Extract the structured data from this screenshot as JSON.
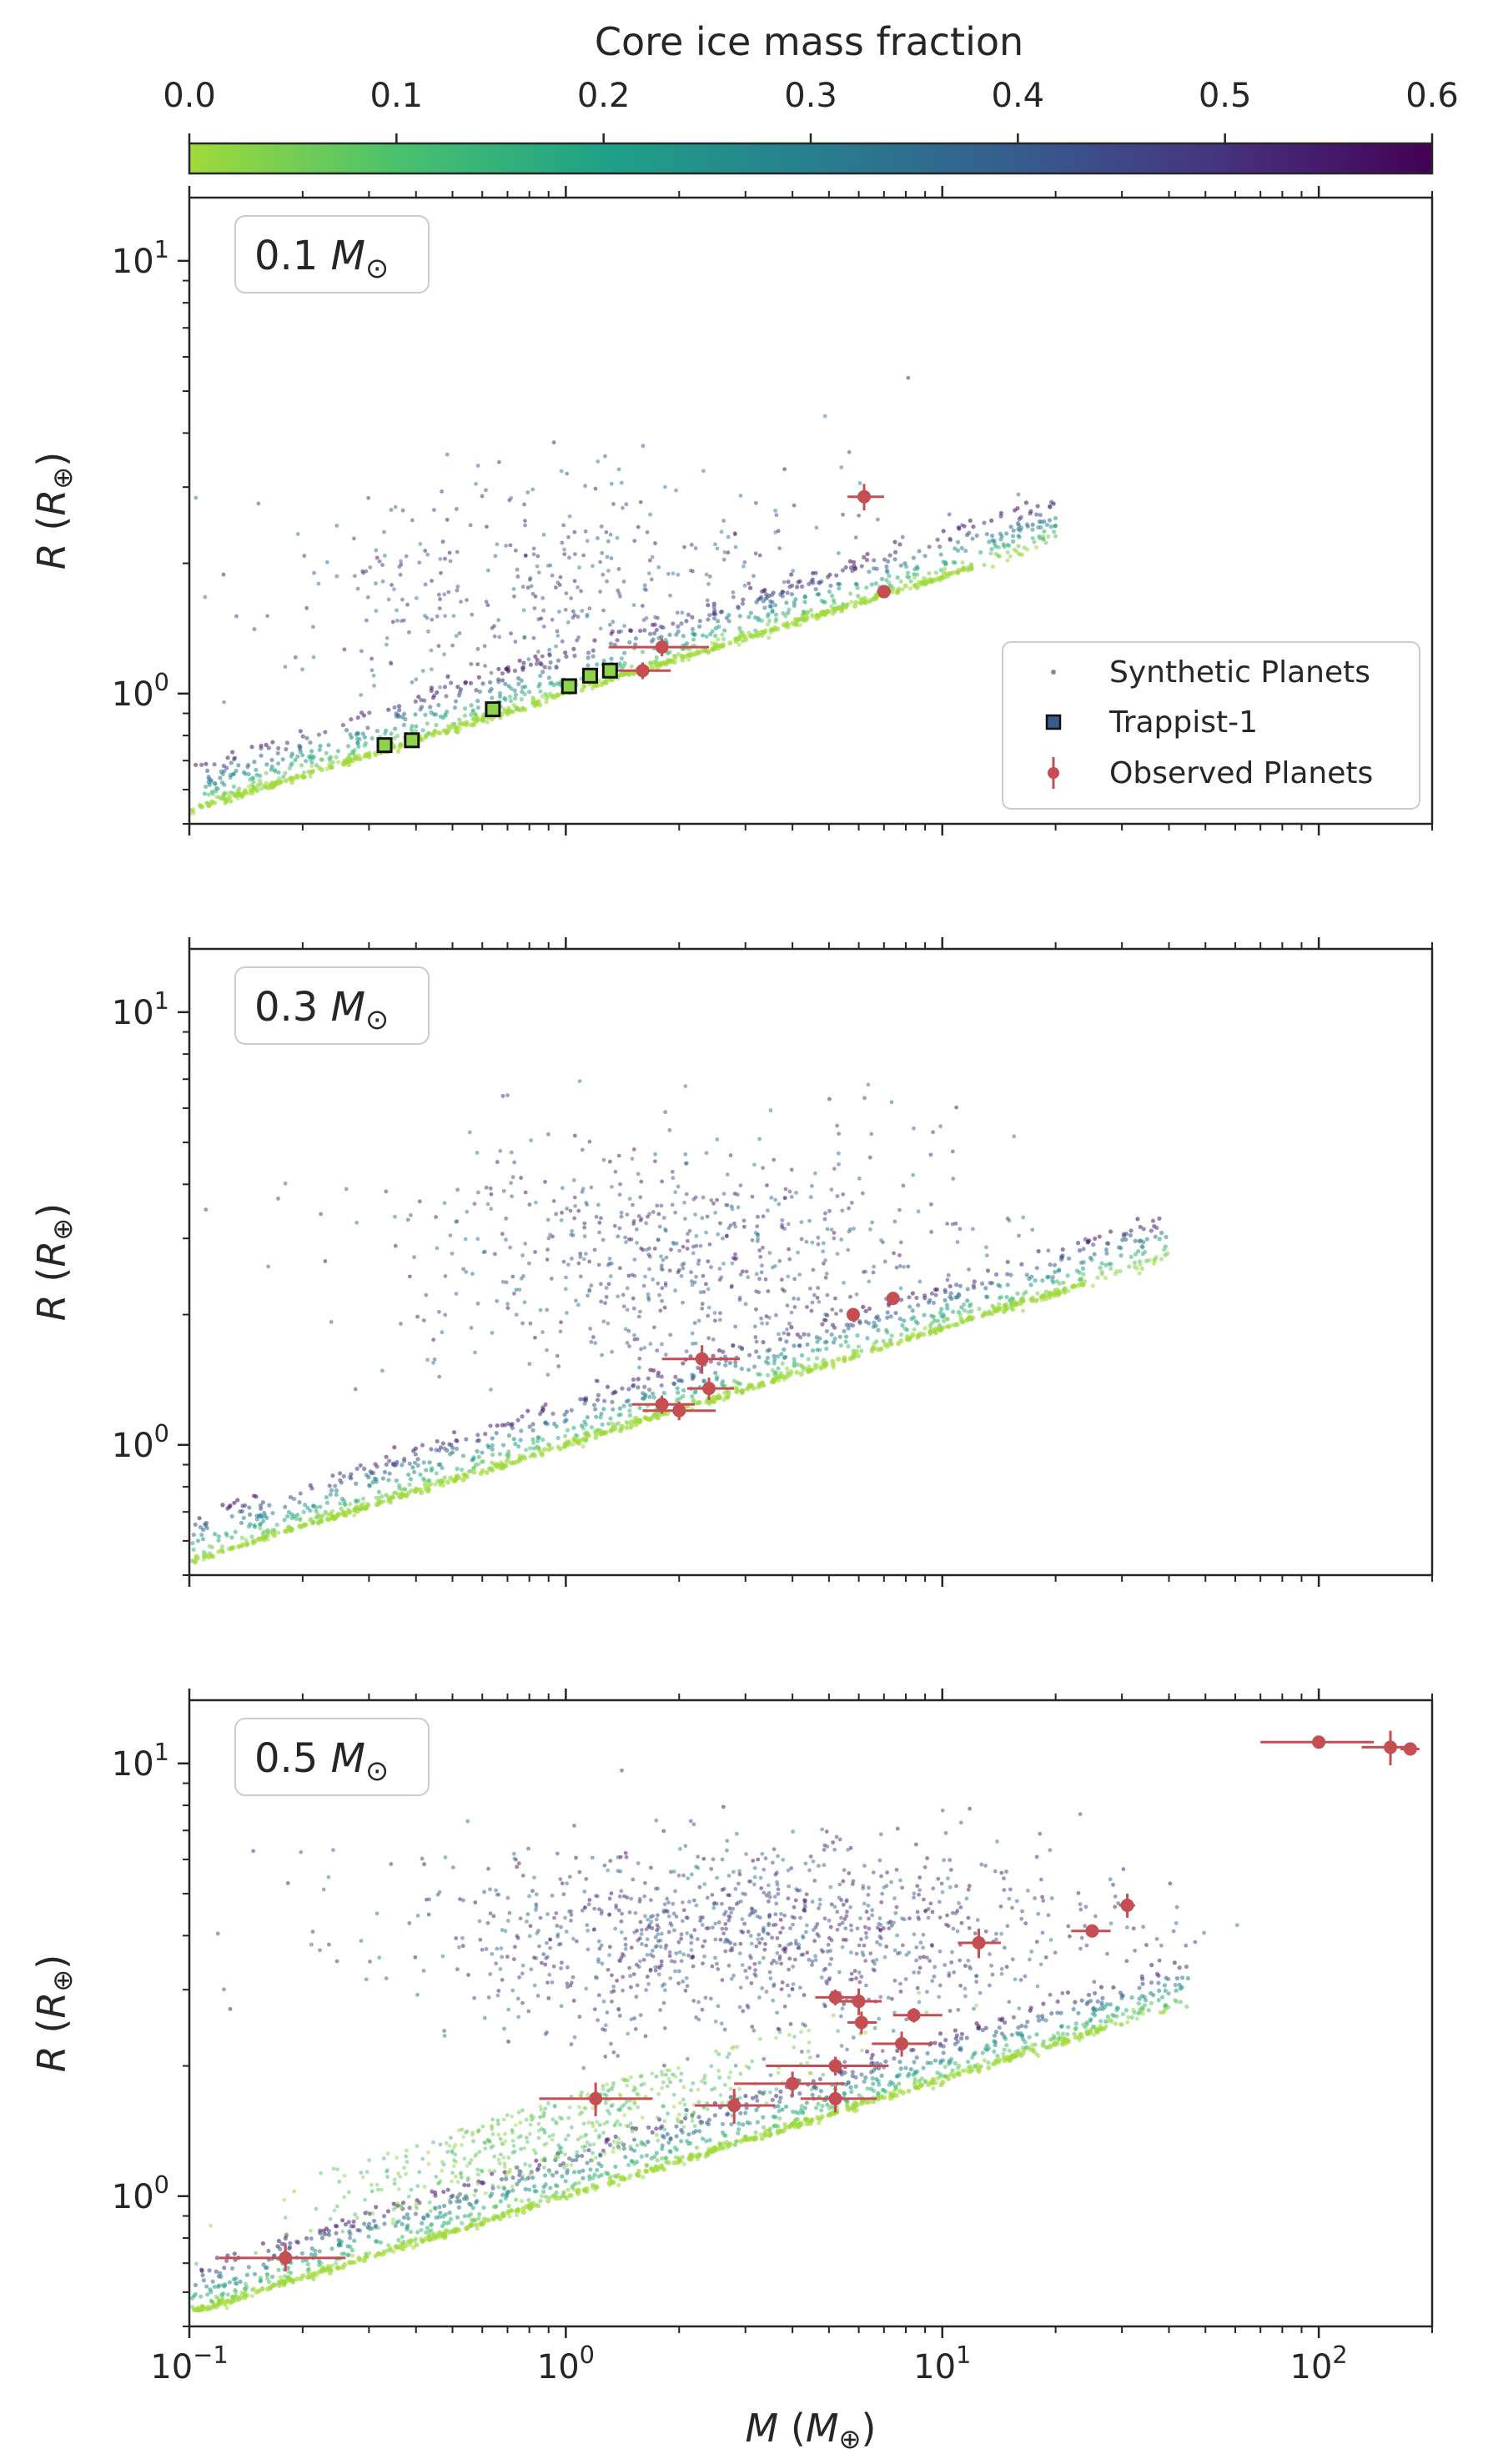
{
  "colorbar": {
    "title": "Core ice mass fraction",
    "min": 0.0,
    "max": 0.6,
    "ticks": [
      "0.0",
      "0.1",
      "0.2",
      "0.3",
      "0.4",
      "0.5",
      "0.6"
    ],
    "stops": [
      "#a0da39",
      "#4ac16d",
      "#1fa187",
      "#277f8e",
      "#365c8d",
      "#46327e",
      "#440154"
    ]
  },
  "colors": {
    "observed": "#c44e52",
    "trappist_edge": "#111111",
    "trappist_fill": "#8fd34a",
    "axis": "#262626"
  },
  "axes": {
    "x_label_var": "M",
    "x_label_unit": "M",
    "x_label_sub": "⊕",
    "y_label_var": "R",
    "y_label_unit": "R",
    "y_label_sub": "⊕",
    "x_tick_labels": [
      "10",
      "10",
      "10",
      "10"
    ],
    "x_tick_exps": [
      "−1",
      "0",
      "1",
      "2"
    ],
    "y_tick_labels": [
      "10",
      "10"
    ],
    "y_tick_exps": [
      "0",
      "1"
    ]
  },
  "legend": {
    "synthetic": "Synthetic Planets",
    "trappist": "Trappist-1",
    "observed": "Observed Planets"
  },
  "chart_data": [
    {
      "type": "scatter",
      "panel_label": "0.1",
      "panel_label_unit": "M",
      "panel_label_sub": "⊙",
      "xscale": "log",
      "yscale": "log",
      "xlim": [
        0.1,
        200
      ],
      "ylim": [
        0.5,
        14
      ],
      "xlabel": "",
      "ylabel": "R (R⊕)",
      "series": [
        {
          "name": "Observed Planets",
          "x": [
            6.2,
            7.0,
            1.8,
            1.6
          ],
          "y": [
            2.85,
            1.72,
            1.28,
            1.13
          ],
          "x_err": [
            [
              0.6,
              0.8
            ],
            [
              0.3,
              0.3
            ],
            [
              0.5,
              0.6
            ],
            [
              0.3,
              0.3
            ]
          ],
          "y_err": [
            [
              0.2,
              0.2
            ],
            [
              0.04,
              0.04
            ],
            [
              0.06,
              0.06
            ],
            [
              0.05,
              0.05
            ]
          ]
        },
        {
          "name": "Trappist-1",
          "x": [
            0.33,
            0.39,
            0.64,
            1.02,
            1.16,
            1.31
          ],
          "y": [
            0.76,
            0.78,
            0.92,
            1.04,
            1.1,
            1.13
          ]
        }
      ],
      "synthetic": {
        "seed": 11,
        "m_max": 20,
        "cloud_center": [
          1.1,
          1.6
        ],
        "cloud_extent": [
          0.45,
          0.32
        ],
        "cloud_n": 520,
        "line_n": 900
      }
    },
    {
      "type": "scatter",
      "panel_label": "0.3",
      "panel_label_unit": "M",
      "panel_label_sub": "⊙",
      "xscale": "log",
      "yscale": "log",
      "xlim": [
        0.1,
        200
      ],
      "ylim": [
        0.5,
        14
      ],
      "xlabel": "",
      "ylabel": "R (R⊕)",
      "series": [
        {
          "name": "Observed Planets",
          "x": [
            5.8,
            7.4,
            2.3,
            2.4,
            1.8,
            2.0
          ],
          "y": [
            2.0,
            2.18,
            1.58,
            1.35,
            1.24,
            1.2
          ],
          "x_err": [
            [
              0.2,
              0.2
            ],
            [
              0.3,
              0.3
            ],
            [
              0.5,
              0.6
            ],
            [
              0.3,
              0.4
            ],
            [
              0.3,
              0.4
            ],
            [
              0.4,
              0.5
            ]
          ],
          "y_err": [
            [
              0.03,
              0.03
            ],
            [
              0.03,
              0.03
            ],
            [
              0.12,
              0.12
            ],
            [
              0.08,
              0.08
            ],
            [
              0.06,
              0.06
            ],
            [
              0.06,
              0.06
            ]
          ]
        }
      ],
      "synthetic": {
        "seed": 23,
        "m_max": 40,
        "cloud_center": [
          2.2,
          2.6
        ],
        "cloud_extent": [
          0.4,
          0.3
        ],
        "cloud_n": 700,
        "line_n": 1000
      }
    },
    {
      "type": "scatter",
      "panel_label": "0.5",
      "panel_label_unit": "M",
      "panel_label_sub": "⊙",
      "xscale": "log",
      "yscale": "log",
      "xlim": [
        0.1,
        200
      ],
      "ylim": [
        0.5,
        14
      ],
      "xlabel": "M (M⊕)",
      "ylabel": "R (R⊕)",
      "series": [
        {
          "name": "Observed Planets",
          "x": [
            0.18,
            1.2,
            2.8,
            4.0,
            5.2,
            5.2,
            5.2,
            6.0,
            6.1,
            7.8,
            8.4,
            12.5,
            25.0,
            31.0,
            100.0,
            155.0,
            175.0
          ],
          "y": [
            0.72,
            1.68,
            1.62,
            1.82,
            1.68,
            2.0,
            2.88,
            2.82,
            2.52,
            2.25,
            2.62,
            3.85,
            4.1,
            4.7,
            11.2,
            10.9,
            10.8
          ],
          "x_err": [
            [
              0.06,
              0.08
            ],
            [
              0.35,
              0.5
            ],
            [
              0.6,
              0.8
            ],
            [
              1.2,
              1.5
            ],
            [
              1.0,
              1.5
            ],
            [
              1.8,
              2.0
            ],
            [
              0.6,
              0.9
            ],
            [
              0.7,
              0.9
            ],
            [
              0.5,
              0.6
            ],
            [
              1.3,
              1.6
            ],
            [
              1.0,
              1.6
            ],
            [
              1.5,
              1.8
            ],
            [
              3.0,
              3.0
            ],
            [
              1.5,
              1.5
            ],
            [
              30.0,
              40.0
            ],
            [
              25.0,
              25.0
            ],
            [
              10.0,
              10.0
            ]
          ],
          "y_err": [
            [
              0.05,
              0.05
            ],
            [
              0.15,
              0.15
            ],
            [
              0.15,
              0.15
            ],
            [
              0.12,
              0.12
            ],
            [
              0.12,
              0.12
            ],
            [
              0.1,
              0.1
            ],
            [
              0.12,
              0.12
            ],
            [
              0.2,
              0.2
            ],
            [
              0.15,
              0.15
            ],
            [
              0.15,
              0.15
            ],
            [
              0.1,
              0.1
            ],
            [
              0.3,
              0.3
            ],
            [
              0.1,
              0.1
            ],
            [
              0.3,
              0.3
            ],
            [
              0.3,
              0.3
            ],
            [
              1.0,
              1.0
            ],
            [
              0.3,
              0.3
            ]
          ]
        }
      ],
      "synthetic": {
        "seed": 37,
        "m_max": 45,
        "cloud_center": [
          3.0,
          4.0
        ],
        "cloud_extent": [
          0.45,
          0.22
        ],
        "cloud_n": 1100,
        "line_n": 1100,
        "lowice_n": 500
      }
    }
  ]
}
